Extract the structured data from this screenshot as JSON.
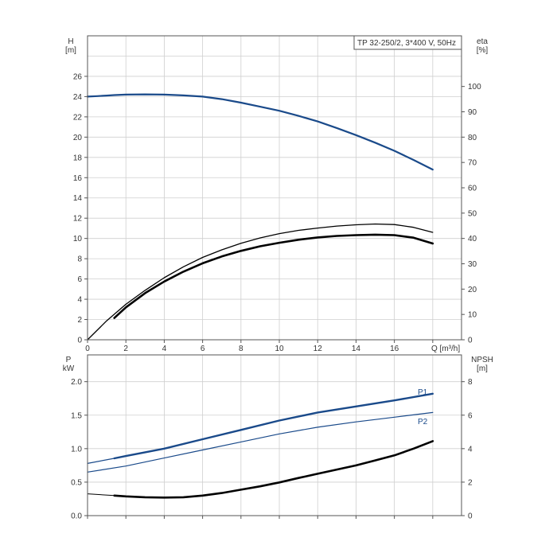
{
  "chart_data": [
    {
      "type": "line",
      "title": "TP 32-250/2, 3*400 V, 50Hz",
      "xlabel": "Q [m³/h]",
      "xlim": [
        0,
        19.5
      ],
      "x_ticks": [
        "0",
        "2",
        "4",
        "6",
        "8",
        "10",
        "12",
        "14",
        "16"
      ],
      "left_axis": {
        "label_top": "H",
        "label_bottom": "[m]",
        "ylim": [
          0,
          30
        ],
        "ticks": [
          "0",
          "2",
          "4",
          "6",
          "8",
          "10",
          "12",
          "14",
          "16",
          "18",
          "20",
          "22",
          "24",
          "26"
        ]
      },
      "right_axis": {
        "label_top": "eta",
        "label_bottom": "[%]",
        "ylim": [
          0,
          120
        ],
        "ticks": [
          "0",
          "10",
          "20",
          "30",
          "40",
          "50",
          "60",
          "70",
          "80",
          "90",
          "100"
        ]
      },
      "grid": true,
      "series": [
        {
          "axis": "left",
          "color": "#1a4a8a",
          "width": 2.2,
          "x": [
            0,
            0.5,
            1.0,
            1.4,
            2,
            3,
            4,
            5,
            6,
            7,
            8,
            9,
            10,
            11,
            12,
            13,
            14,
            15,
            16,
            17,
            18
          ],
          "y": [
            24.0,
            24.05,
            24.1,
            24.15,
            24.2,
            24.22,
            24.2,
            24.12,
            24.0,
            23.75,
            23.4,
            23.0,
            22.6,
            22.1,
            21.55,
            20.9,
            20.2,
            19.45,
            18.65,
            17.75,
            16.8
          ]
        },
        {
          "axis": "right",
          "color": "#000000",
          "width": 1.3,
          "x": [
            0,
            1,
            2,
            3,
            4,
            5,
            6,
            7,
            8,
            9,
            10,
            11,
            12,
            13,
            14,
            15,
            16,
            17,
            18
          ],
          "y": [
            0,
            7.5,
            14,
            19.5,
            24.5,
            28.8,
            32.5,
            35.5,
            38.1,
            40.2,
            41.9,
            43.2,
            44.1,
            44.9,
            45.4,
            45.7,
            45.5,
            44.4,
            42.4
          ]
        },
        {
          "axis": "right",
          "color": "#000000",
          "width": 2.6,
          "x": [
            1.4,
            2,
            3,
            4,
            5,
            6,
            7,
            8,
            9,
            10,
            11,
            12,
            13,
            14,
            15,
            16,
            17,
            18
          ],
          "y": [
            8.6,
            12.8,
            18.4,
            23.0,
            26.9,
            30.2,
            32.9,
            35.1,
            36.9,
            38.3,
            39.5,
            40.4,
            41.0,
            41.3,
            41.5,
            41.3,
            40.3,
            38.0
          ]
        }
      ]
    },
    {
      "type": "line",
      "xlim": [
        0,
        19.5
      ],
      "left_axis": {
        "label_top": "P",
        "label_bottom": "kW",
        "ylim": [
          0,
          2.4
        ],
        "ticks": [
          "0.0",
          "0.5",
          "1.0",
          "1.5",
          "2.0"
        ]
      },
      "right_axis": {
        "label_top": "NPSH",
        "label_bottom": "[m]",
        "ylim": [
          0,
          9.6
        ],
        "ticks": [
          "0",
          "2",
          "4",
          "6",
          "8"
        ]
      },
      "grid": true,
      "series": [
        {
          "name": "P1",
          "axis": "left",
          "color": "#1a4a8a",
          "width": 2.4,
          "x": [
            1.4,
            2,
            4,
            6,
            8,
            10,
            12,
            14,
            16,
            18
          ],
          "y": [
            0.855,
            0.89,
            1.0,
            1.14,
            1.28,
            1.42,
            1.54,
            1.63,
            1.72,
            1.82
          ]
        },
        {
          "name": "",
          "axis": "left",
          "color": "#1a4a8a",
          "width": 1.2,
          "x": [
            0,
            1.4
          ],
          "y": [
            0.78,
            0.855
          ]
        },
        {
          "name": "P2",
          "axis": "left",
          "color": "#1a4a8a",
          "width": 1.2,
          "x": [
            0,
            2,
            4,
            6,
            8,
            10,
            12,
            14,
            16,
            18
          ],
          "y": [
            0.65,
            0.74,
            0.86,
            0.98,
            1.1,
            1.22,
            1.32,
            1.4,
            1.47,
            1.54
          ]
        },
        {
          "name": "",
          "axis": "right",
          "color": "#000000",
          "width": 2.6,
          "x": [
            1.4,
            2,
            3,
            4,
            5,
            6,
            7,
            8,
            9,
            10,
            11,
            12,
            13,
            14,
            15,
            16,
            17,
            18
          ],
          "y": [
            1.2,
            1.15,
            1.1,
            1.08,
            1.1,
            1.2,
            1.35,
            1.55,
            1.75,
            1.98,
            2.25,
            2.5,
            2.75,
            3.0,
            3.3,
            3.6,
            4.0,
            4.45
          ]
        },
        {
          "name": "",
          "axis": "right",
          "color": "#000000",
          "width": 1.0,
          "x": [
            0,
            1.4
          ],
          "y": [
            1.3,
            1.2
          ]
        }
      ]
    }
  ]
}
